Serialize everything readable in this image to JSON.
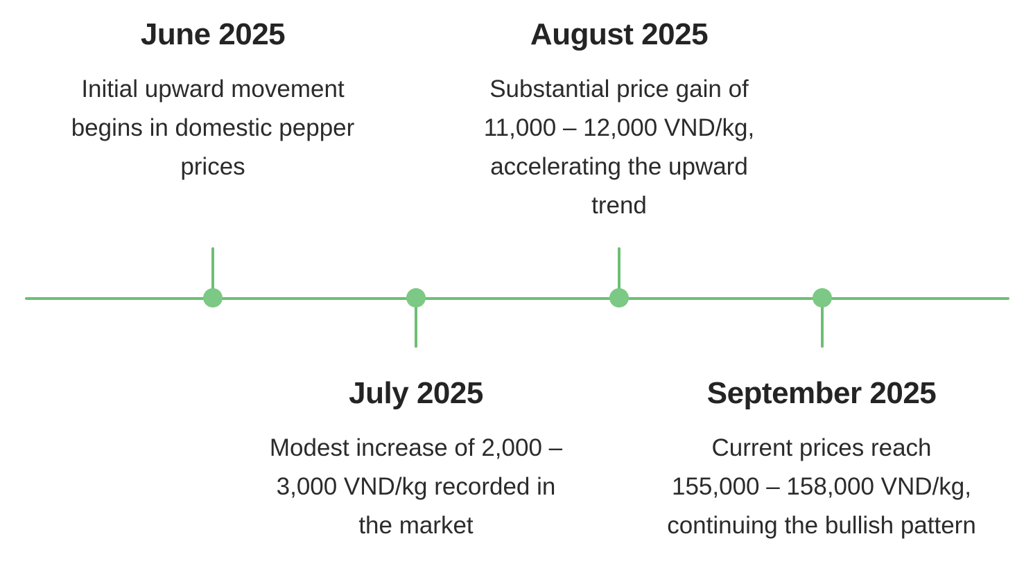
{
  "timeline": {
    "accent_color": "#6dbf73",
    "events": [
      {
        "title": "June 2025",
        "description": "Initial upward movement begins in domestic pepper prices",
        "position": "above"
      },
      {
        "title": "July 2025",
        "description": "Modest increase of 2,000 – 3,000 VND/kg recorded in the market",
        "position": "below"
      },
      {
        "title": "August 2025",
        "description": "Substantial price gain of 11,000 – 12,000 VND/kg, accelerating the upward trend",
        "position": "above"
      },
      {
        "title": "September 2025",
        "description": "Current prices reach 155,000 – 158,000 VND/kg, continuing the bullish pattern",
        "position": "below"
      }
    ]
  }
}
